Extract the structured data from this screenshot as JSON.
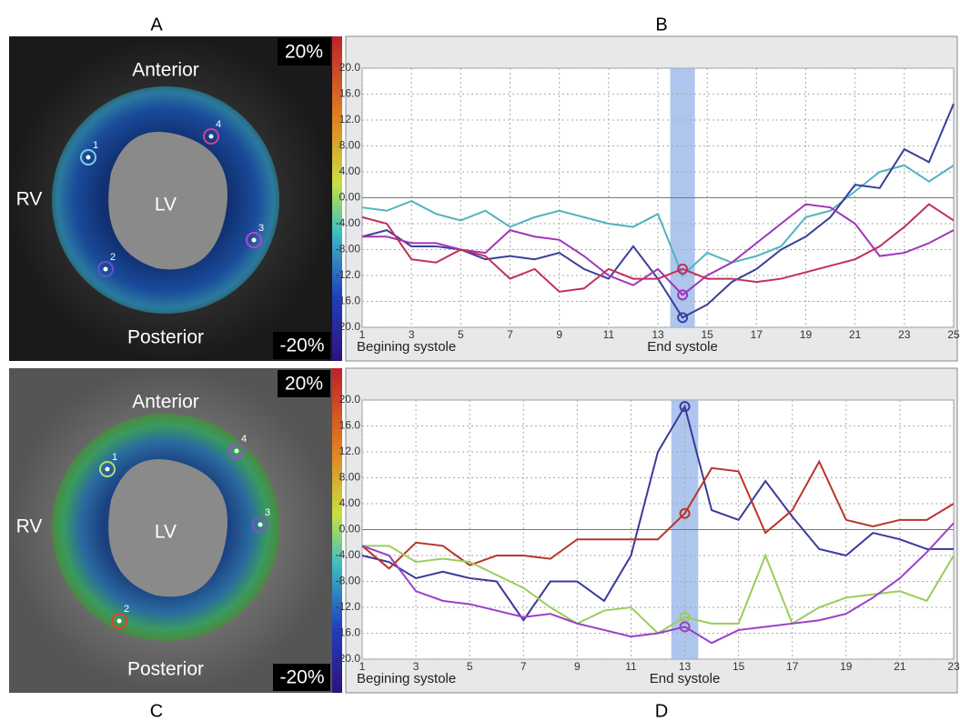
{
  "panel_labels": [
    "A",
    "B",
    "C",
    "D"
  ],
  "images": [
    {
      "labels": {
        "top": "Anterior",
        "left": "RV",
        "center": "LV",
        "bottom": "Posterior",
        "max": "20%",
        "min": "-20%"
      },
      "markers": [
        {
          "label": "1",
          "color": "#7fd0e0"
        },
        {
          "label": "2",
          "color": "#6a4fd0"
        },
        {
          "label": "3",
          "color": "#c040d0"
        },
        {
          "label": "4",
          "color": "#d0409a"
        }
      ]
    },
    {
      "labels": {
        "top": "Anterior",
        "left": "RV",
        "center": "LV",
        "bottom": "Posterior",
        "max": "20%",
        "min": "-20%"
      },
      "markers": [
        {
          "label": "1",
          "color": "#b0e070"
        },
        {
          "label": "2",
          "color": "#e04030"
        },
        {
          "label": "3",
          "color": "#8a4fd0"
        },
        {
          "label": "4",
          "color": "#b040e0"
        }
      ]
    }
  ],
  "chart_data": [
    {
      "type": "line",
      "start_label": "Begining systole",
      "end_label": "End systole",
      "highlight_x": 14,
      "x": [
        1,
        2,
        3,
        4,
        5,
        6,
        7,
        8,
        9,
        10,
        11,
        12,
        13,
        14,
        15,
        16,
        17,
        18,
        19,
        20,
        21,
        22,
        23,
        24,
        25
      ],
      "xlim": [
        1,
        25
      ],
      "xticks": [
        1,
        3,
        5,
        7,
        9,
        11,
        13,
        15,
        17,
        19,
        21,
        23,
        25
      ],
      "ylim": [
        -20,
        20
      ],
      "yticks": [
        {
          "value": 20,
          "label": "20.0"
        },
        {
          "value": 16,
          "label": "16.0"
        },
        {
          "value": 12,
          "label": "12.0"
        },
        {
          "value": 8,
          "label": "8.00"
        },
        {
          "value": 4,
          "label": "4.00"
        },
        {
          "value": 0,
          "label": "0.00"
        },
        {
          "value": -4,
          "label": "-4.00"
        },
        {
          "value": -8,
          "label": "-8.00"
        },
        {
          "value": -12,
          "label": "-12.0"
        },
        {
          "value": -16,
          "label": "-16.0"
        },
        {
          "value": -20,
          "label": "-20.0"
        }
      ],
      "grid": true,
      "circled": [
        1,
        2,
        3
      ],
      "series": [
        {
          "color": "#4fb3bf",
          "values": [
            -1.5,
            -2,
            -0.5,
            -2.5,
            -3.5,
            -2,
            -4.5,
            -3,
            -2,
            -3,
            -4,
            -4.5,
            -2.5,
            -12,
            -8.5,
            -10,
            -9,
            -7.5,
            -3,
            -2,
            1,
            4,
            5,
            2.5,
            5
          ]
        },
        {
          "color": "#3a3f9a",
          "values": [
            -6,
            -5,
            -7.5,
            -7.5,
            -8,
            -9.5,
            -9,
            -9.5,
            -8.5,
            -11,
            -12.5,
            -7.5,
            -12.5,
            -18.5,
            -16.5,
            -13,
            -11,
            -8,
            -6,
            -3,
            2,
            1.5,
            7.5,
            5.5,
            14.5
          ]
        },
        {
          "color": "#a035b8",
          "values": [
            -6,
            -6,
            -7,
            -7,
            -8,
            -8.5,
            -5,
            -6,
            -6.5,
            -9,
            -12,
            -13.5,
            -11,
            -15,
            -12,
            -10,
            -7,
            -4,
            -1,
            -1.5,
            -4,
            -9,
            -8.5,
            -7,
            -5
          ]
        },
        {
          "color": "#c0305a",
          "values": [
            -3,
            -4,
            -9.5,
            -10,
            -8,
            -9,
            -12.5,
            -11,
            -14.5,
            -14,
            -11,
            -12.5,
            -12.5,
            -11,
            -12.5,
            -12.5,
            -13,
            -12.5,
            -11.5,
            -10.5,
            -9.5,
            -7.5,
            -4.5,
            -1,
            -3.5
          ]
        }
      ]
    },
    {
      "type": "line",
      "start_label": "Begining systole",
      "end_label": "End systole",
      "highlight_x": 13,
      "x": [
        1,
        2,
        3,
        4,
        5,
        6,
        7,
        8,
        9,
        10,
        11,
        12,
        13,
        14,
        15,
        16,
        17,
        18,
        19,
        20,
        21,
        22,
        23
      ],
      "xlim": [
        1,
        23
      ],
      "xticks": [
        1,
        3,
        5,
        7,
        9,
        11,
        13,
        15,
        17,
        19,
        21,
        23
      ],
      "ylim": [
        -20,
        20
      ],
      "yticks": [
        {
          "value": 20,
          "label": "20.0"
        },
        {
          "value": 16,
          "label": "16.0"
        },
        {
          "value": 12,
          "label": "12.0"
        },
        {
          "value": 8,
          "label": "8.00"
        },
        {
          "value": 4,
          "label": "4.00"
        },
        {
          "value": 0,
          "label": "0.00"
        },
        {
          "value": -4,
          "label": "-4.00"
        },
        {
          "value": -8,
          "label": "-8.00"
        },
        {
          "value": -12,
          "label": "-12.0"
        },
        {
          "value": -16,
          "label": "-16.0"
        },
        {
          "value": -20,
          "label": "-20.0"
        }
      ],
      "grid": true,
      "circled": [
        0,
        1,
        2,
        3
      ],
      "series": [
        {
          "color": "#3a3a9c",
          "values": [
            -4,
            -5,
            -7.5,
            -6.5,
            -7.5,
            -8,
            -14,
            -8,
            -8,
            -11,
            -4,
            12,
            19,
            3,
            1.5,
            7.5,
            2,
            -3,
            -4,
            -0.5,
            -1.5,
            -3,
            -3
          ]
        },
        {
          "color": "#b8352a",
          "values": [
            -2.5,
            -6,
            -2,
            -2.5,
            -5.5,
            -4,
            -4,
            -4.5,
            -1.5,
            -1.5,
            -1.5,
            -1.5,
            2.5,
            9.5,
            9,
            -0.5,
            3,
            10.5,
            1.5,
            0.5,
            1.5,
            1.5,
            4
          ]
        },
        {
          "color": "#9acd5a",
          "values": [
            -2.5,
            -2.5,
            -5,
            -4.5,
            -5,
            -7,
            -9,
            -12,
            -14.5,
            -12.5,
            -12,
            -16,
            -13.5,
            -14.5,
            -14.5,
            -4,
            -14.5,
            -12,
            -10.5,
            -10,
            -9.5,
            -11,
            -4
          ]
        },
        {
          "color": "#9b3fc8",
          "values": [
            -2.5,
            -4,
            -9.5,
            -11,
            -11.5,
            -12.5,
            -13.5,
            -13,
            -14.5,
            -15.5,
            -16.5,
            -16,
            -15,
            -17.5,
            -15.5,
            -15,
            -14.5,
            -14,
            -13,
            -10.5,
            -7.5,
            -3.5,
            1
          ]
        }
      ]
    }
  ]
}
